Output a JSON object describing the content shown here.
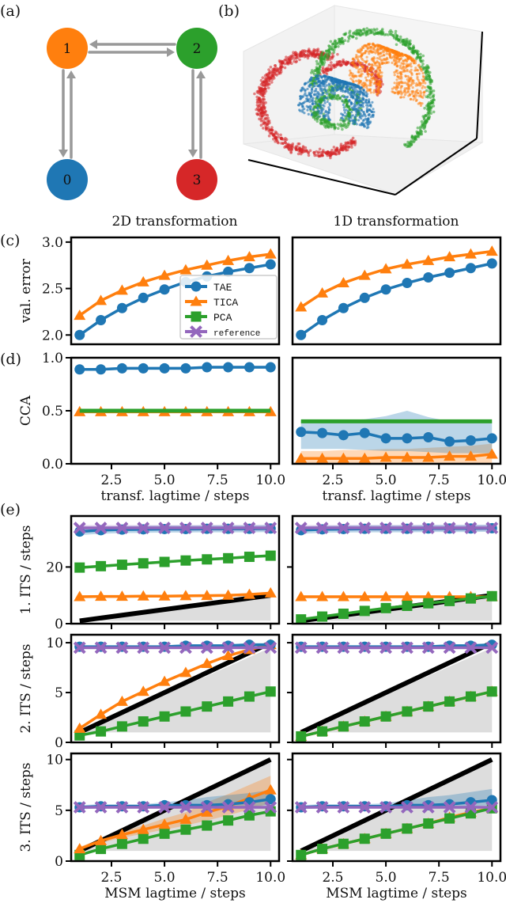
{
  "panel_labels": {
    "a": "(a)",
    "b": "(b)",
    "c": "(c)",
    "d": "(d)",
    "e": "(e)"
  },
  "column_titles": [
    "2D transformation",
    "1D transformation"
  ],
  "colors": {
    "TAE": "#1f77b4",
    "TICA": "#ff7f0e",
    "PCA": "#2ca02c",
    "reference": "#9467bd",
    "state0": "#1f77b4",
    "state1": "#ff7f0e",
    "state2": "#2ca02c",
    "state3": "#d62728",
    "arrow": "#999999",
    "diag": "#000000",
    "shade": "#dddddd"
  },
  "graph": {
    "nodes": [
      {
        "label": "0",
        "color_key": "state0"
      },
      {
        "label": "1",
        "color_key": "state1"
      },
      {
        "label": "2",
        "color_key": "state2"
      },
      {
        "label": "3",
        "color_key": "state3"
      }
    ],
    "edges": [
      [
        "0",
        "1"
      ],
      [
        "1",
        "2"
      ],
      [
        "2",
        "3"
      ]
    ]
  },
  "scatter3d": {
    "description": "3D scatter of four metastable states colored by state",
    "states": [
      "0",
      "1",
      "2",
      "3"
    ]
  },
  "legend": [
    {
      "name": "TAE",
      "marker": "circle"
    },
    {
      "name": "TICA",
      "marker": "triangle"
    },
    {
      "name": "PCA",
      "marker": "square"
    },
    {
      "name": "reference",
      "marker": "x"
    }
  ],
  "chart_data": [
    {
      "id": "c-left",
      "type": "line",
      "title": "2D transformation",
      "ylabel": "val. error",
      "xlabel": "",
      "ylim": [
        1.9,
        3.05
      ],
      "xlim": [
        0.6,
        10.4
      ],
      "yticks": [
        "2.0",
        "2.5",
        "3.0"
      ],
      "ytick_values": [
        2.0,
        2.5,
        3.0
      ],
      "xticks": [],
      "legend_position": "lower-right",
      "x": [
        1,
        2,
        3,
        4,
        5,
        6,
        7,
        8,
        9,
        10
      ],
      "series": [
        {
          "name": "TICA",
          "values": [
            2.21,
            2.37,
            2.48,
            2.57,
            2.64,
            2.7,
            2.75,
            2.8,
            2.84,
            2.87
          ]
        },
        {
          "name": "TAE",
          "values": [
            2.0,
            2.16,
            2.29,
            2.4,
            2.49,
            2.57,
            2.63,
            2.68,
            2.72,
            2.76
          ]
        }
      ]
    },
    {
      "id": "c-right",
      "type": "line",
      "title": "1D transformation",
      "ylabel": "",
      "xlabel": "",
      "ylim": [
        1.9,
        3.05
      ],
      "xlim": [
        0.6,
        10.4
      ],
      "yticks": [],
      "ytick_values": [],
      "xticks": [],
      "x": [
        1,
        2,
        3,
        4,
        5,
        6,
        7,
        8,
        9,
        10
      ],
      "series": [
        {
          "name": "TICA",
          "values": [
            2.3,
            2.45,
            2.56,
            2.64,
            2.71,
            2.76,
            2.8,
            2.84,
            2.87,
            2.9
          ]
        },
        {
          "name": "TAE",
          "values": [
            2.0,
            2.16,
            2.29,
            2.4,
            2.49,
            2.56,
            2.62,
            2.67,
            2.72,
            2.77
          ]
        }
      ]
    },
    {
      "id": "d-left",
      "type": "line",
      "ylabel": "CCA",
      "xlabel": "transf. lagtime / steps",
      "ylim": [
        0.0,
        1.0
      ],
      "xlim": [
        0.6,
        10.4
      ],
      "yticks": [
        "0.0",
        "0.5",
        "1.0"
      ],
      "ytick_values": [
        0.0,
        0.5,
        1.0
      ],
      "xticks": [
        "2.5",
        "5.0",
        "7.5",
        "10.0"
      ],
      "xtick_values": [
        2.5,
        5.0,
        7.5,
        10.0
      ],
      "x": [
        1,
        2,
        3,
        4,
        5,
        6,
        7,
        8,
        9,
        10
      ],
      "series": [
        {
          "name": "TICA",
          "values": [
            0.49,
            0.49,
            0.49,
            0.49,
            0.49,
            0.49,
            0.49,
            0.49,
            0.49,
            0.49
          ]
        },
        {
          "name": "PCA",
          "values": [
            0.5,
            0.5,
            0.5,
            0.5,
            0.5,
            0.5,
            0.5,
            0.5,
            0.5,
            0.5
          ],
          "marker": "none"
        },
        {
          "name": "TAE",
          "values": [
            0.89,
            0.89,
            0.9,
            0.9,
            0.9,
            0.9,
            0.91,
            0.91,
            0.91,
            0.91
          ]
        }
      ]
    },
    {
      "id": "d-right",
      "type": "line",
      "ylabel": "",
      "xlabel": "transf. lagtime / steps",
      "ylim": [
        0.0,
        1.0
      ],
      "xlim": [
        0.6,
        10.4
      ],
      "yticks": [],
      "ytick_values": [],
      "xticks": [
        "2.5",
        "5.0",
        "7.5",
        "10.0"
      ],
      "xtick_values": [
        2.5,
        5.0,
        7.5,
        10.0
      ],
      "x": [
        1,
        2,
        3,
        4,
        5,
        6,
        7,
        8,
        9,
        10
      ],
      "series": [
        {
          "name": "TICA",
          "values": [
            0.05,
            0.05,
            0.05,
            0.05,
            0.06,
            0.06,
            0.06,
            0.07,
            0.07,
            0.09
          ],
          "band": [
            [
              0.0,
              0.12
            ],
            [
              0.0,
              0.12
            ],
            [
              0.0,
              0.13
            ],
            [
              0.0,
              0.13
            ],
            [
              0.0,
              0.14
            ],
            [
              0.0,
              0.14
            ],
            [
              0.0,
              0.15
            ],
            [
              0.0,
              0.16
            ],
            [
              0.0,
              0.17
            ],
            [
              0.0,
              0.19
            ]
          ]
        },
        {
          "name": "TAE",
          "values": [
            0.3,
            0.29,
            0.27,
            0.29,
            0.24,
            0.24,
            0.25,
            0.21,
            0.22,
            0.24
          ],
          "band": [
            [
              0.14,
              0.4
            ],
            [
              0.14,
              0.4
            ],
            [
              0.14,
              0.41
            ],
            [
              0.13,
              0.42
            ],
            [
              0.12,
              0.45
            ],
            [
              0.12,
              0.5
            ],
            [
              0.11,
              0.44
            ],
            [
              0.1,
              0.4
            ],
            [
              0.1,
              0.4
            ],
            [
              0.1,
              0.4
            ]
          ]
        },
        {
          "name": "PCA",
          "values": [
            0.4,
            0.4,
            0.4,
            0.4,
            0.4,
            0.4,
            0.4,
            0.4,
            0.4,
            0.4
          ],
          "marker": "none"
        }
      ]
    },
    {
      "id": "e1-left",
      "type": "line",
      "ylabel": "1. ITS / steps",
      "xlabel": "",
      "ylim": [
        0,
        38
      ],
      "xlim": [
        0.6,
        10.4
      ],
      "yticks": [
        "0",
        "20"
      ],
      "ytick_values": [
        0,
        20
      ],
      "xticks": [],
      "diagonal": true,
      "shade_upper": 10,
      "x": [
        1,
        2,
        3,
        4,
        5,
        6,
        7,
        8,
        9,
        10
      ],
      "series": [
        {
          "name": "TICA",
          "values": [
            9.5,
            9.6,
            9.6,
            9.7,
            9.7,
            9.8,
            9.9,
            10.0,
            10.3,
            10.8
          ]
        },
        {
          "name": "PCA",
          "values": [
            19.8,
            20.3,
            20.8,
            21.3,
            21.8,
            22.3,
            22.7,
            23.1,
            23.6,
            24.0
          ]
        },
        {
          "name": "TAE",
          "values": [
            32.5,
            33.0,
            33.2,
            33.3,
            33.4,
            33.4,
            33.5,
            33.5,
            33.5,
            33.6
          ],
          "band_width": 2.5
        },
        {
          "name": "reference",
          "values": [
            33.8,
            33.8,
            33.8,
            33.8,
            33.8,
            33.8,
            33.8,
            33.8,
            33.8,
            33.8
          ],
          "band_width": 2.0
        }
      ]
    },
    {
      "id": "e1-right",
      "type": "line",
      "ylabel": "",
      "xlabel": "",
      "ylim": [
        0,
        38
      ],
      "xlim": [
        0.6,
        10.4
      ],
      "yticks": [],
      "ytick_values": [
        0,
        20
      ],
      "xticks": [],
      "diagonal": true,
      "shade_upper": 10,
      "x": [
        1,
        2,
        3,
        4,
        5,
        6,
        7,
        8,
        9,
        10
      ],
      "series": [
        {
          "name": "TICA",
          "values": [
            9.5,
            9.5,
            9.5,
            9.5,
            9.5,
            9.5,
            9.5,
            9.5,
            9.5,
            9.5
          ]
        },
        {
          "name": "PCA",
          "values": [
            1.5,
            2.5,
            3.5,
            4.5,
            5.5,
            6.3,
            7.2,
            8.0,
            8.9,
            9.7
          ]
        },
        {
          "name": "TAE",
          "values": [
            33.0,
            33.3,
            33.4,
            33.5,
            33.5,
            33.5,
            33.6,
            33.6,
            33.6,
            33.7
          ],
          "band_width": 2.5
        },
        {
          "name": "reference",
          "values": [
            33.8,
            33.8,
            33.8,
            33.8,
            33.8,
            33.8,
            33.8,
            33.8,
            33.8,
            33.8
          ],
          "band_width": 2.0
        }
      ]
    },
    {
      "id": "e2-left",
      "type": "line",
      "ylabel": "2. ITS / steps",
      "xlabel": "",
      "ylim": [
        0,
        10.8
      ],
      "xlim": [
        0.6,
        10.4
      ],
      "yticks": [
        "0",
        "5",
        "10"
      ],
      "ytick_values": [
        0,
        5,
        10
      ],
      "xticks": [],
      "diagonal": true,
      "shade_upper": 9.5,
      "x": [
        1,
        2,
        3,
        4,
        5,
        6,
        7,
        8,
        9,
        10
      ],
      "series": [
        {
          "name": "PCA",
          "values": [
            0.7,
            1.1,
            1.6,
            2.1,
            2.6,
            3.1,
            3.6,
            4.1,
            4.6,
            5.1
          ]
        },
        {
          "name": "TICA",
          "values": [
            1.4,
            2.8,
            4.1,
            5.1,
            6.1,
            7.0,
            7.9,
            8.7,
            9.3,
            9.8
          ]
        },
        {
          "name": "TAE",
          "values": [
            9.6,
            9.6,
            9.6,
            9.6,
            9.6,
            9.7,
            9.7,
            9.7,
            9.8,
            9.8
          ]
        },
        {
          "name": "reference",
          "values": [
            9.5,
            9.5,
            9.5,
            9.5,
            9.5,
            9.5,
            9.5,
            9.5,
            9.5,
            9.5
          ]
        }
      ]
    },
    {
      "id": "e2-right",
      "type": "line",
      "ylabel": "",
      "xlabel": "",
      "ylim": [
        0,
        10.8
      ],
      "xlim": [
        0.6,
        10.4
      ],
      "yticks": [],
      "ytick_values": [
        0,
        5,
        10
      ],
      "xticks": [],
      "diagonal": true,
      "shade_upper": 9.5,
      "x": [
        1,
        2,
        3,
        4,
        5,
        6,
        7,
        8,
        9,
        10
      ],
      "series": [
        {
          "name": "TICA",
          "values": [
            0.6,
            1.1,
            1.6,
            2.1,
            2.6,
            3.1,
            3.6,
            4.1,
            4.6,
            5.1
          ]
        },
        {
          "name": "PCA",
          "values": [
            0.6,
            1.1,
            1.6,
            2.1,
            2.6,
            3.1,
            3.6,
            4.1,
            4.6,
            5.1
          ]
        },
        {
          "name": "TAE",
          "values": [
            9.6,
            9.6,
            9.6,
            9.6,
            9.6,
            9.6,
            9.6,
            9.7,
            9.7,
            9.8
          ]
        },
        {
          "name": "reference",
          "values": [
            9.5,
            9.5,
            9.5,
            9.5,
            9.5,
            9.5,
            9.5,
            9.5,
            9.5,
            9.5
          ]
        }
      ]
    },
    {
      "id": "e3-left",
      "type": "line",
      "ylabel": "3. ITS / steps",
      "xlabel": "MSM lagtime / steps",
      "ylim": [
        0,
        10.6
      ],
      "xlim": [
        0.6,
        10.4
      ],
      "yticks": [
        "0",
        "5",
        "10"
      ],
      "ytick_values": [
        0,
        5,
        10
      ],
      "xticks": [
        "2.5",
        "5.0",
        "7.5",
        "10.0"
      ],
      "xtick_values": [
        2.5,
        5.0,
        7.5,
        10.0
      ],
      "diagonal": true,
      "shade_upper": 9.8,
      "x": [
        1,
        2,
        3,
        4,
        5,
        6,
        7,
        8,
        9,
        10
      ],
      "series": [
        {
          "name": "PCA",
          "values": [
            0.6,
            1.2,
            1.7,
            2.2,
            2.7,
            3.1,
            3.5,
            4.0,
            4.5,
            4.9
          ]
        },
        {
          "name": "TICA",
          "values": [
            1.2,
            2.0,
            2.6,
            3.1,
            3.6,
            4.1,
            4.8,
            5.4,
            6.2,
            7.0
          ],
          "band": [
            [
              1.0,
              1.4
            ],
            [
              1.8,
              2.2
            ],
            [
              2.3,
              2.9
            ],
            [
              2.7,
              3.5
            ],
            [
              3.1,
              4.2
            ],
            [
              3.5,
              4.8
            ],
            [
              4.0,
              5.8
            ],
            [
              4.5,
              6.6
            ],
            [
              5.1,
              7.5
            ],
            [
              5.7,
              8.4
            ]
          ]
        },
        {
          "name": "TAE",
          "values": [
            5.3,
            5.4,
            5.4,
            5.4,
            5.5,
            5.5,
            5.5,
            5.6,
            5.8,
            6.1
          ],
          "band": [
            [
              5.1,
              5.5
            ],
            [
              5.2,
              5.6
            ],
            [
              5.2,
              5.6
            ],
            [
              5.2,
              5.6
            ],
            [
              5.3,
              5.8
            ],
            [
              5.3,
              6.0
            ],
            [
              5.3,
              6.3
            ],
            [
              5.3,
              6.5
            ],
            [
              5.4,
              6.7
            ],
            [
              5.5,
              7.0
            ]
          ]
        },
        {
          "name": "reference",
          "values": [
            5.3,
            5.3,
            5.3,
            5.3,
            5.3,
            5.3,
            5.3,
            5.3,
            5.3,
            5.3
          ]
        }
      ]
    },
    {
      "id": "e3-right",
      "type": "line",
      "ylabel": "",
      "xlabel": "MSM lagtime / steps",
      "ylim": [
        0,
        10.6
      ],
      "xlim": [
        0.6,
        10.4
      ],
      "yticks": [],
      "ytick_values": [
        0,
        5,
        10
      ],
      "xticks": [
        "2.5",
        "5.0",
        "7.5",
        "10.0"
      ],
      "xtick_values": [
        2.5,
        5.0,
        7.5,
        10.0
      ],
      "diagonal": true,
      "shade_upper": 9.8,
      "x": [
        1,
        2,
        3,
        4,
        5,
        6,
        7,
        8,
        9,
        10
      ],
      "series": [
        {
          "name": "TICA",
          "values": [
            0.6,
            1.2,
            1.7,
            2.2,
            2.7,
            3.2,
            3.7,
            4.3,
            4.8,
            5.2
          ]
        },
        {
          "name": "PCA",
          "values": [
            0.6,
            1.2,
            1.7,
            2.2,
            2.7,
            3.2,
            3.7,
            4.2,
            4.7,
            5.2
          ]
        },
        {
          "name": "TAE",
          "values": [
            5.3,
            5.4,
            5.4,
            5.4,
            5.4,
            5.5,
            5.5,
            5.6,
            5.8,
            6.0
          ],
          "band": [
            [
              5.1,
              5.5
            ],
            [
              5.2,
              5.6
            ],
            [
              5.2,
              5.6
            ],
            [
              5.2,
              5.6
            ],
            [
              5.2,
              5.7
            ],
            [
              5.3,
              6.0
            ],
            [
              5.3,
              6.3
            ],
            [
              5.3,
              6.5
            ],
            [
              5.4,
              6.8
            ],
            [
              5.5,
              7.1
            ]
          ]
        },
        {
          "name": "reference",
          "values": [
            5.3,
            5.3,
            5.3,
            5.3,
            5.3,
            5.3,
            5.3,
            5.3,
            5.3,
            5.3
          ]
        }
      ]
    }
  ]
}
